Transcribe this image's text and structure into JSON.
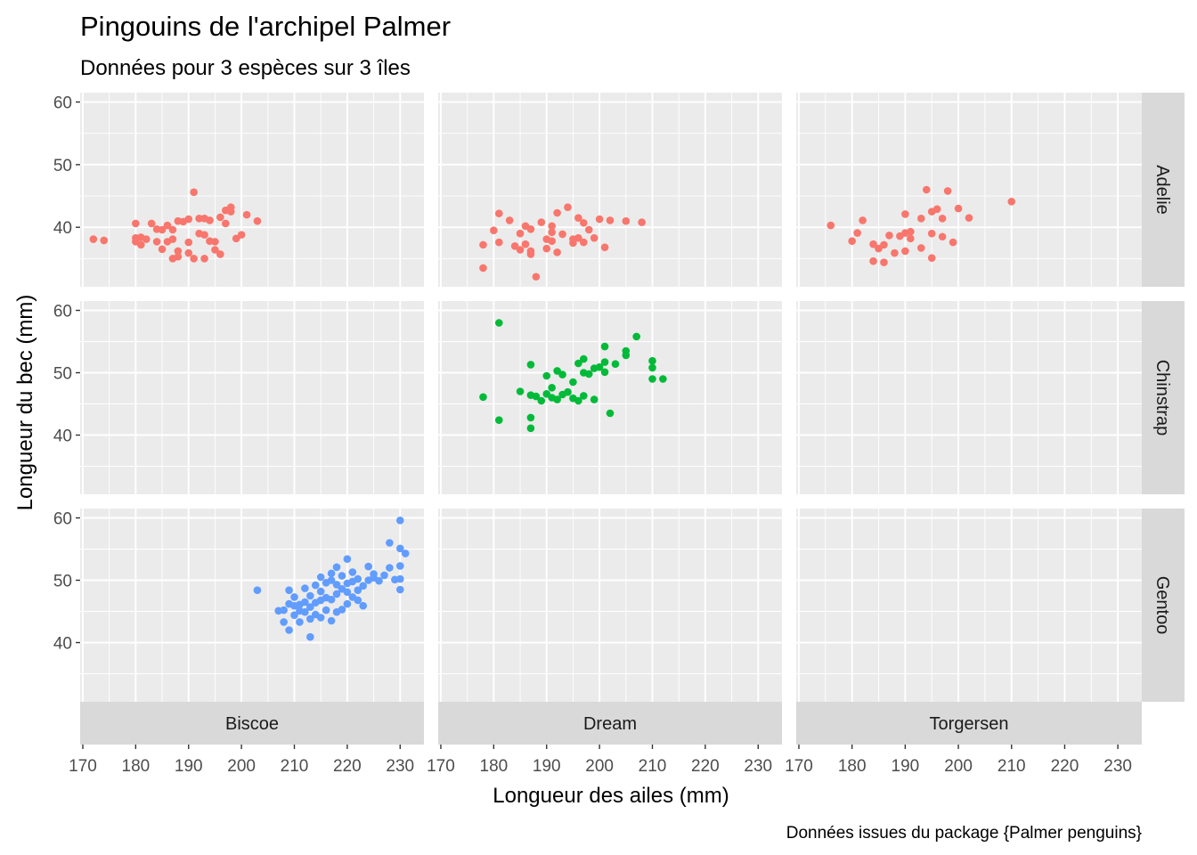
{
  "chart_data": {
    "type": "scatter",
    "title": "Pingouins de l'archipel Palmer",
    "subtitle": "Données pour 3 espèces sur 3 îles",
    "xlabel": "Longueur des ailes (mm)",
    "ylabel": "Longueur du bec (mm)",
    "caption": "Données issues du package {Palmer penguins}",
    "xlim": [
      169.5,
      234.5
    ],
    "ylim": [
      30.5,
      61.5
    ],
    "x_ticks": [
      170,
      180,
      190,
      200,
      210,
      220,
      230
    ],
    "y_ticks": [
      40,
      50,
      60
    ],
    "grid": true,
    "facet_columns": [
      "Biscoe",
      "Dream",
      "Torgersen"
    ],
    "facet_rows": [
      "Adelie",
      "Chinstrap",
      "Gentoo"
    ],
    "colors": {
      "Adelie": "#F8766D",
      "Chinstrap": "#00BA38",
      "Gentoo": "#619CFF",
      "panel_background": "#EBEBEB",
      "strip_background": "#D9D9D9",
      "grid_major": "#FFFFFF"
    },
    "panels": [
      {
        "island": "Biscoe",
        "species": "Adelie",
        "points": [
          [
            172,
            38.1
          ],
          [
            174,
            37.9
          ],
          [
            180,
            40.6
          ],
          [
            180,
            38.3
          ],
          [
            180,
            37.7
          ],
          [
            181,
            38.4
          ],
          [
            181,
            37.2
          ],
          [
            182,
            38.1
          ],
          [
            183,
            40.6
          ],
          [
            184,
            37.7
          ],
          [
            184,
            39.7
          ],
          [
            185,
            39.6
          ],
          [
            185,
            36.5
          ],
          [
            186,
            40.3
          ],
          [
            186,
            37.7
          ],
          [
            187,
            38.1
          ],
          [
            187,
            35.0
          ],
          [
            187,
            39.6
          ],
          [
            188,
            35.3
          ],
          [
            188,
            41.0
          ],
          [
            188,
            36.2
          ],
          [
            189,
            40.9
          ],
          [
            190,
            37.6
          ],
          [
            190,
            41.3
          ],
          [
            190,
            35.9
          ],
          [
            191,
            45.6
          ],
          [
            191,
            35.0
          ],
          [
            192,
            39.0
          ],
          [
            192,
            41.4
          ],
          [
            193,
            35.0
          ],
          [
            193,
            41.4
          ],
          [
            193,
            38.8
          ],
          [
            194,
            41.1
          ],
          [
            194,
            37.8
          ],
          [
            195,
            36.4
          ],
          [
            195,
            37.7
          ],
          [
            196,
            41.6
          ],
          [
            196,
            35.7
          ],
          [
            197,
            42.7
          ],
          [
            197,
            40.6
          ],
          [
            198,
            42.5
          ],
          [
            198,
            43.2
          ],
          [
            199,
            38.2
          ],
          [
            200,
            38.8
          ],
          [
            201,
            42.0
          ],
          [
            203,
            41.0
          ]
        ]
      },
      {
        "island": "Dream",
        "species": "Adelie",
        "points": [
          [
            178,
            37.2
          ],
          [
            178,
            33.5
          ],
          [
            180,
            39.5
          ],
          [
            181,
            42.2
          ],
          [
            181,
            37.6
          ],
          [
            183,
            41.1
          ],
          [
            184,
            37.0
          ],
          [
            185,
            39.0
          ],
          [
            185,
            36.4
          ],
          [
            186,
            40.2
          ],
          [
            186,
            37.3
          ],
          [
            187,
            39.7
          ],
          [
            187,
            36.2
          ],
          [
            187,
            35.7
          ],
          [
            188,
            32.1
          ],
          [
            189,
            40.8
          ],
          [
            190,
            38.1
          ],
          [
            190,
            36.6
          ],
          [
            191,
            37.8
          ],
          [
            191,
            39.2
          ],
          [
            191,
            40.2
          ],
          [
            192,
            42.3
          ],
          [
            192,
            36.0
          ],
          [
            193,
            38.9
          ],
          [
            194,
            43.2
          ],
          [
            195,
            38.1
          ],
          [
            195,
            37.5
          ],
          [
            196,
            41.5
          ],
          [
            196,
            38.3
          ],
          [
            197,
            40.7
          ],
          [
            197,
            37.6
          ],
          [
            198,
            39.6
          ],
          [
            199,
            38.3
          ],
          [
            200,
            41.3
          ],
          [
            201,
            36.8
          ],
          [
            202,
            41.1
          ],
          [
            205,
            41.0
          ],
          [
            208,
            40.8
          ]
        ]
      },
      {
        "island": "Torgersen",
        "species": "Adelie",
        "points": [
          [
            176,
            40.3
          ],
          [
            180,
            37.8
          ],
          [
            181,
            39.1
          ],
          [
            182,
            41.1
          ],
          [
            184,
            34.6
          ],
          [
            184,
            37.3
          ],
          [
            185,
            36.6
          ],
          [
            186,
            34.4
          ],
          [
            186,
            37.2
          ],
          [
            187,
            38.7
          ],
          [
            188,
            35.9
          ],
          [
            189,
            38.6
          ],
          [
            190,
            36.2
          ],
          [
            190,
            39.1
          ],
          [
            190,
            42.1
          ],
          [
            191,
            39.3
          ],
          [
            191,
            38.2
          ],
          [
            193,
            41.4
          ],
          [
            193,
            36.7
          ],
          [
            194,
            46.0
          ],
          [
            195,
            39.0
          ],
          [
            195,
            35.1
          ],
          [
            195,
            42.5
          ],
          [
            196,
            42.9
          ],
          [
            197,
            41.4
          ],
          [
            197,
            38.5
          ],
          [
            198,
            45.8
          ],
          [
            199,
            37.6
          ],
          [
            200,
            43.0
          ],
          [
            202,
            41.5
          ],
          [
            210,
            44.1
          ]
        ]
      },
      {
        "island": "Dream",
        "species": "Chinstrap",
        "points": [
          [
            178,
            46.1
          ],
          [
            181,
            58.0
          ],
          [
            181,
            42.4
          ],
          [
            185,
            47.0
          ],
          [
            187,
            41.1
          ],
          [
            187,
            42.8
          ],
          [
            187,
            46.4
          ],
          [
            187,
            51.3
          ],
          [
            188,
            46.2
          ],
          [
            189,
            45.5
          ],
          [
            190,
            46.6
          ],
          [
            190,
            49.5
          ],
          [
            191,
            46.0
          ],
          [
            191,
            47.6
          ],
          [
            192,
            45.7
          ],
          [
            192,
            50.3
          ],
          [
            193,
            46.5
          ],
          [
            193,
            49.7
          ],
          [
            194,
            46.9
          ],
          [
            195,
            45.9
          ],
          [
            195,
            48.5
          ],
          [
            196,
            45.5
          ],
          [
            196,
            51.5
          ],
          [
            197,
            46.3
          ],
          [
            197,
            50.0
          ],
          [
            197,
            52.2
          ],
          [
            198,
            49.8
          ],
          [
            199,
            50.7
          ],
          [
            199,
            45.7
          ],
          [
            200,
            50.9
          ],
          [
            201,
            50.1
          ],
          [
            201,
            51.7
          ],
          [
            201,
            54.2
          ],
          [
            202,
            43.5
          ],
          [
            203,
            51.4
          ],
          [
            205,
            53.5
          ],
          [
            205,
            52.8
          ],
          [
            207,
            55.8
          ],
          [
            210,
            51.9
          ],
          [
            210,
            50.8
          ],
          [
            210,
            49.0
          ],
          [
            212,
            49.0
          ]
        ]
      },
      {
        "island": "Biscoe",
        "species": "Gentoo",
        "points": [
          [
            203,
            48.4
          ],
          [
            207,
            45.1
          ],
          [
            208,
            43.3
          ],
          [
            208,
            45.2
          ],
          [
            209,
            42.0
          ],
          [
            209,
            46.2
          ],
          [
            209,
            48.4
          ],
          [
            210,
            44.4
          ],
          [
            210,
            45.9
          ],
          [
            210,
            47.3
          ],
          [
            211,
            43.3
          ],
          [
            211,
            46.1
          ],
          [
            211,
            45.1
          ],
          [
            212,
            44.9
          ],
          [
            212,
            46.5
          ],
          [
            212,
            48.7
          ],
          [
            213,
            40.9
          ],
          [
            213,
            43.8
          ],
          [
            213,
            45.7
          ],
          [
            213,
            47.5
          ],
          [
            214,
            44.5
          ],
          [
            214,
            46.4
          ],
          [
            214,
            49.2
          ],
          [
            215,
            44.0
          ],
          [
            215,
            46.8
          ],
          [
            215,
            48.2
          ],
          [
            215,
            50.5
          ],
          [
            216,
            45.2
          ],
          [
            216,
            47.2
          ],
          [
            216,
            49.6
          ],
          [
            217,
            43.5
          ],
          [
            217,
            46.9
          ],
          [
            217,
            50.0
          ],
          [
            217,
            51.1
          ],
          [
            218,
            44.9
          ],
          [
            218,
            47.8
          ],
          [
            218,
            49.3
          ],
          [
            218,
            52.1
          ],
          [
            219,
            45.3
          ],
          [
            219,
            48.6
          ],
          [
            219,
            50.7
          ],
          [
            220,
            46.2
          ],
          [
            220,
            48.1
          ],
          [
            220,
            49.5
          ],
          [
            220,
            53.4
          ],
          [
            221,
            47.3
          ],
          [
            221,
            49.8
          ],
          [
            221,
            51.3
          ],
          [
            222,
            46.8
          ],
          [
            222,
            48.4
          ],
          [
            222,
            50.2
          ],
          [
            223,
            45.9
          ],
          [
            223,
            49.1
          ],
          [
            224,
            50.0
          ],
          [
            224,
            52.2
          ],
          [
            225,
            50.4
          ],
          [
            225,
            51.0
          ],
          [
            226,
            49.9
          ],
          [
            227,
            50.8
          ],
          [
            228,
            56.0
          ],
          [
            228,
            52.0
          ],
          [
            229,
            50.1
          ],
          [
            230,
            59.6
          ],
          [
            230,
            55.1
          ],
          [
            230,
            52.3
          ],
          [
            230,
            50.2
          ],
          [
            230,
            48.5
          ],
          [
            231,
            54.3
          ]
        ]
      }
    ]
  }
}
